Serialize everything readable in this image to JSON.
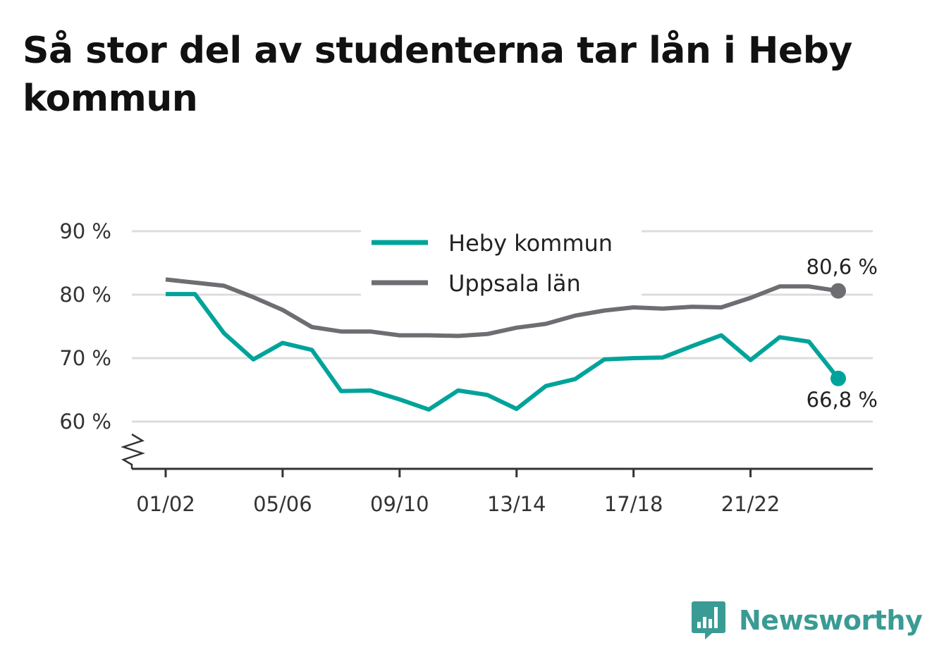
{
  "title": "Så stor del av studenterna tar lån i Heby kommun",
  "brand": {
    "name": "Newsworthy",
    "color": "#3a9b94"
  },
  "chart_data": {
    "type": "line",
    "title": "Så stor del av studenterna tar lån i Heby kommun",
    "x": [
      "01/02",
      "02/03",
      "03/04",
      "04/05",
      "05/06",
      "06/07",
      "07/08",
      "08/09",
      "09/10",
      "10/11",
      "11/12",
      "12/13",
      "13/14",
      "14/15",
      "15/16",
      "16/17",
      "17/18",
      "18/19",
      "19/20",
      "20/21",
      "21/22",
      "22/23",
      "23/24",
      "24/25"
    ],
    "x_tick_labels": [
      "01/02",
      "05/06",
      "09/10",
      "13/14",
      "17/18",
      "21/22"
    ],
    "y_tick_labels": [
      "60 %",
      "70 %",
      "80 %",
      "90 %"
    ],
    "y_ticks": [
      60,
      70,
      80,
      90
    ],
    "ylim": [
      52.5,
      93
    ],
    "y_axis_break": true,
    "grid": true,
    "legend_position": "top-center",
    "series": [
      {
        "name": "Heby kommun",
        "color": "#00a39a",
        "values": [
          80.1,
          80.1,
          73.9,
          69.8,
          72.4,
          71.3,
          64.8,
          64.9,
          63.5,
          61.9,
          64.9,
          64.2,
          62.0,
          65.6,
          66.7,
          69.8,
          70.0,
          70.1,
          71.9,
          73.6,
          69.7,
          73.3,
          72.6,
          66.8
        ],
        "end_label": "66,8 %"
      },
      {
        "name": "Uppsala län",
        "color": "#6d6d72",
        "values": [
          82.4,
          81.9,
          81.4,
          79.6,
          77.6,
          74.9,
          74.2,
          74.2,
          73.6,
          73.6,
          73.5,
          73.8,
          74.8,
          75.4,
          76.7,
          77.5,
          78.0,
          77.8,
          78.1,
          78.0,
          79.5,
          81.3,
          81.3,
          80.6
        ],
        "end_label": "80,6 %"
      }
    ]
  }
}
